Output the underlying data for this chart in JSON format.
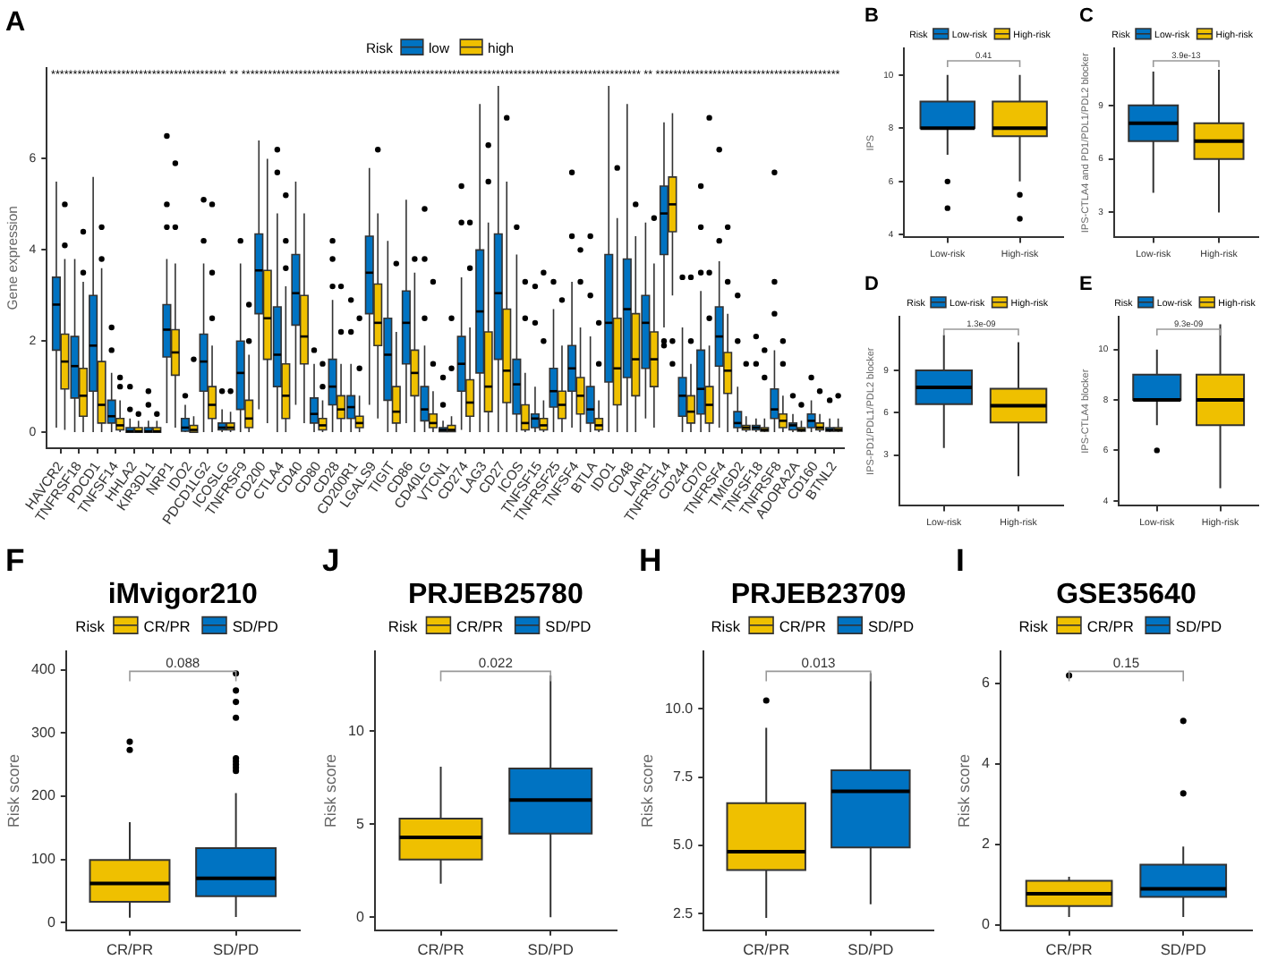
{
  "chart_data": [
    {
      "type": "box",
      "ylabel": "Gene expression",
      "legend": "top",
      "legend_title": "Risk",
      "ylim": [
        -0.35,
        8.0
      ],
      "yticks": [
        0,
        2,
        4,
        6
      ],
      "categories": [
        "HAVCR2",
        "TNFRSF18",
        "PDCD1",
        "TNFSF14",
        "HHLA2",
        "KIR3DL1",
        "NRP1",
        "IDO2",
        "PDCD1LG2",
        "ICOSLG",
        "TNFRSF9",
        "CD200",
        "CTLA4",
        "CD40",
        "CD80",
        "CD28",
        "CD200R1",
        "LGALS9",
        "TIGIT",
        "CD86",
        "CD40LG",
        "VTCN1",
        "CD274",
        "LAG3",
        "CD27",
        "ICOS",
        "TNFSF15",
        "TNFRSF25",
        "TNFSF4",
        "BTLA",
        "IDO1",
        "CD48",
        "LAIR1",
        "TNFRSF14",
        "CD244",
        "CD70",
        "TNFRSF4",
        "TMIGD2",
        "TNFSF18",
        "TNFRSF8",
        "ADORA2A",
        "CD160",
        "BTNL2"
      ],
      "series": [
        {
          "name": "low",
          "color": "#0073c2",
          "boxes": [
            {
              "low": 0.1,
              "q1": 1.8,
              "median": 2.8,
              "q3": 3.4,
              "high": 5.5
            },
            {
              "low": 0,
              "q1": 0.75,
              "median": 1.45,
              "q3": 2.1,
              "high": 3.8
            },
            {
              "low": 0,
              "q1": 0.9,
              "median": 1.9,
              "q3": 3.0,
              "high": 5.6
            },
            {
              "low": 0,
              "q1": 0.2,
              "median": 0.35,
              "q3": 0.7,
              "high": 1.3,
              "outliers": [
                1.8,
                2.3
              ]
            },
            {
              "low": 0,
              "q1": 0,
              "median": 0.02,
              "q3": 0.1,
              "high": 0.3,
              "outliers": [
                0.5,
                1.0
              ]
            },
            {
              "low": 0,
              "q1": 0,
              "median": 0.02,
              "q3": 0.1,
              "high": 0.25,
              "outliers": [
                0.6,
                0.9
              ]
            },
            {
              "low": 0.2,
              "q1": 1.65,
              "median": 2.25,
              "q3": 2.8,
              "high": 3.8,
              "outliers": [
                4.5,
                5.0,
                6.5
              ]
            },
            {
              "low": 0,
              "q1": 0.02,
              "median": 0.1,
              "q3": 0.3,
              "high": 0.6,
              "outliers": [
                0.8
              ]
            },
            {
              "low": 0,
              "q1": 0.9,
              "median": 1.55,
              "q3": 2.15,
              "high": 3.7,
              "outliers": [
                4.2,
                5.1
              ]
            },
            {
              "low": 0,
              "q1": 0.05,
              "median": 0.1,
              "q3": 0.2,
              "high": 0.5,
              "outliers": [
                0.9
              ]
            },
            {
              "low": 0,
              "q1": 0.5,
              "median": 1.3,
              "q3": 2.0,
              "high": 3.7,
              "outliers": [
                4.2
              ]
            },
            {
              "low": 0.5,
              "q1": 2.6,
              "median": 3.55,
              "q3": 4.35,
              "high": 6.4
            },
            {
              "low": 0,
              "q1": 1.0,
              "median": 1.7,
              "q3": 2.75,
              "high": 4.8,
              "outliers": [
                5.7,
                6.2
              ]
            },
            {
              "low": 0.6,
              "q1": 2.35,
              "median": 3.05,
              "q3": 3.9,
              "high": 5.5
            },
            {
              "low": 0,
              "q1": 0.2,
              "median": 0.4,
              "q3": 0.75,
              "high": 1.5,
              "outliers": [
                1.8
              ]
            },
            {
              "low": 0,
              "q1": 0.6,
              "median": 1.0,
              "q3": 1.6,
              "high": 2.9,
              "outliers": [
                3.2,
                3.8,
                4.2
              ]
            },
            {
              "low": 0,
              "q1": 0.3,
              "median": 0.55,
              "q3": 0.8,
              "high": 1.5,
              "outliers": [
                2.2,
                2.9
              ]
            },
            {
              "low": 0.6,
              "q1": 2.6,
              "median": 3.5,
              "q3": 4.3,
              "high": 5.8
            },
            {
              "low": 0,
              "q1": 0.7,
              "median": 1.7,
              "q3": 2.5,
              "high": 4.2
            },
            {
              "low": 0.2,
              "q1": 1.5,
              "median": 2.4,
              "q3": 3.1,
              "high": 5.1
            },
            {
              "low": 0,
              "q1": 0.25,
              "median": 0.5,
              "q3": 1.0,
              "high": 1.9,
              "outliers": [
                2.5,
                3.8,
                4.9
              ]
            },
            {
              "low": 0,
              "q1": 0.01,
              "median": 0.05,
              "q3": 0.1,
              "high": 0.25,
              "outliers": [
                0.6,
                1.2
              ]
            },
            {
              "low": 0.05,
              "q1": 0.9,
              "median": 1.5,
              "q3": 2.1,
              "high": 3.4,
              "outliers": [
                4.6,
                5.4
              ]
            },
            {
              "low": 0,
              "q1": 1.3,
              "median": 2.65,
              "q3": 4.0,
              "high": 7.2
            },
            {
              "low": 0,
              "q1": 1.6,
              "median": 3.05,
              "q3": 4.35,
              "high": 7.6
            },
            {
              "low": 0,
              "q1": 0.4,
              "median": 1.05,
              "q3": 1.6,
              "high": 3.9,
              "outliers": [
                4.5
              ]
            },
            {
              "low": 0,
              "q1": 0.1,
              "median": 0.3,
              "q3": 0.4,
              "high": 1.0,
              "outliers": [
                2.4,
                3.2
              ]
            },
            {
              "low": 0,
              "q1": 0.55,
              "median": 0.9,
              "q3": 1.4,
              "high": 2.7,
              "outliers": [
                3.3
              ]
            },
            {
              "low": 0.1,
              "q1": 0.9,
              "median": 1.4,
              "q3": 1.9,
              "high": 3.3,
              "outliers": [
                4.3,
                5.7
              ]
            },
            {
              "low": 0,
              "q1": 0.2,
              "median": 0.5,
              "q3": 1.0,
              "high": 2.1,
              "outliers": [
                3.0,
                4.3
              ]
            },
            {
              "low": 0,
              "q1": 1.1,
              "median": 2.4,
              "q3": 3.9,
              "high": 7.6
            },
            {
              "low": 0,
              "q1": 1.2,
              "median": 2.7,
              "q3": 3.8,
              "high": 7.2
            },
            {
              "low": 0.3,
              "q1": 1.4,
              "median": 2.4,
              "q3": 3.0,
              "high": 4.6
            },
            {
              "low": 2.3,
              "q1": 3.9,
              "median": 4.8,
              "q3": 5.4,
              "high": 6.8,
              "outliers": [
                1.9,
                2.0
              ]
            },
            {
              "low": 0,
              "q1": 0.35,
              "median": 0.8,
              "q3": 1.2,
              "high": 2.3,
              "outliers": [
                3.4
              ]
            },
            {
              "low": 0,
              "q1": 0.4,
              "median": 0.95,
              "q3": 1.8,
              "high": 3.1,
              "outliers": [
                3.5,
                4.5,
                5.4
              ]
            },
            {
              "low": 0.1,
              "q1": 1.45,
              "median": 2.1,
              "q3": 2.75,
              "high": 3.75,
              "outliers": [
                4.2,
                6.2
              ]
            },
            {
              "low": 0,
              "q1": 0.1,
              "median": 0.2,
              "q3": 0.45,
              "high": 1.0,
              "outliers": [
                2.0,
                3.0
              ]
            },
            {
              "low": 0,
              "q1": 0.05,
              "median": 0.1,
              "q3": 0.15,
              "high": 0.3,
              "outliers": [
                1.5,
                2.1
              ]
            },
            {
              "low": 0,
              "q1": 0.3,
              "median": 0.5,
              "q3": 0.95,
              "high": 1.8,
              "outliers": [
                2.6,
                3.3,
                5.7
              ]
            },
            {
              "low": 0,
              "q1": 0.05,
              "median": 0.15,
              "q3": 0.2,
              "high": 0.4,
              "outliers": [
                0.8
              ]
            },
            {
              "low": 0,
              "q1": 0.1,
              "median": 0.25,
              "q3": 0.4,
              "high": 0.7,
              "outliers": [
                1.2
              ]
            },
            {
              "low": 0,
              "q1": 0.02,
              "median": 0.05,
              "q3": 0.1,
              "high": 0.3,
              "outliers": [
                0.7
              ]
            }
          ]
        },
        {
          "name": "high",
          "color": "#efc000",
          "boxes": [
            {
              "low": 0.05,
              "q1": 0.95,
              "median": 1.55,
              "q3": 2.15,
              "high": 3.8,
              "outliers": [
                4.1,
                5.0
              ]
            },
            {
              "low": 0,
              "q1": 0.35,
              "median": 0.8,
              "q3": 1.4,
              "high": 3.3,
              "outliers": [
                3.5,
                4.4
              ]
            },
            {
              "low": 0,
              "q1": 0.2,
              "median": 0.6,
              "q3": 1.55,
              "high": 3.6,
              "outliers": [
                3.8,
                4.5
              ]
            },
            {
              "low": 0,
              "q1": 0.05,
              "median": 0.15,
              "q3": 0.3,
              "high": 0.7,
              "outliers": [
                1.0,
                1.2
              ]
            },
            {
              "low": 0,
              "q1": 0,
              "median": 0.02,
              "q3": 0.1,
              "high": 0.25,
              "outliers": [
                0.4
              ]
            },
            {
              "low": 0,
              "q1": 0,
              "median": 0.02,
              "q3": 0.1,
              "high": 0.25,
              "outliers": [
                0.4
              ]
            },
            {
              "low": 0.1,
              "q1": 1.25,
              "median": 1.75,
              "q3": 2.25,
              "high": 3.7,
              "outliers": [
                4.5,
                5.9
              ]
            },
            {
              "low": 0,
              "q1": 0,
              "median": 0.05,
              "q3": 0.15,
              "high": 0.35,
              "outliers": [
                1.6
              ]
            },
            {
              "low": 0,
              "q1": 0.3,
              "median": 0.6,
              "q3": 1.0,
              "high": 1.9,
              "outliers": [
                2.5,
                3.5,
                5.0
              ]
            },
            {
              "low": 0,
              "q1": 0.05,
              "median": 0.1,
              "q3": 0.2,
              "high": 0.45,
              "outliers": [
                0.9
              ]
            },
            {
              "low": 0,
              "q1": 0.1,
              "median": 0.3,
              "q3": 0.7,
              "high": 1.7,
              "outliers": [
                2.0,
                2.8
              ]
            },
            {
              "low": 0.2,
              "q1": 1.6,
              "median": 2.5,
              "q3": 3.55,
              "high": 6.0
            },
            {
              "low": 0,
              "q1": 0.3,
              "median": 0.8,
              "q3": 1.5,
              "high": 3.2,
              "outliers": [
                3.6,
                4.2,
                5.2
              ]
            },
            {
              "low": 0.2,
              "q1": 1.5,
              "median": 2.1,
              "q3": 3.0,
              "high": 4.8
            },
            {
              "low": 0,
              "q1": 0.05,
              "median": 0.15,
              "q3": 0.3,
              "high": 0.7,
              "outliers": [
                1.0,
                1.5
              ]
            },
            {
              "low": 0,
              "q1": 0.3,
              "median": 0.5,
              "q3": 0.8,
              "high": 1.5,
              "outliers": [
                2.2,
                3.2
              ]
            },
            {
              "low": 0,
              "q1": 0.1,
              "median": 0.2,
              "q3": 0.35,
              "high": 0.8,
              "outliers": [
                1.4,
                2.5
              ]
            },
            {
              "low": 0.3,
              "q1": 1.9,
              "median": 2.4,
              "q3": 3.25,
              "high": 4.8,
              "outliers": [
                6.2
              ]
            },
            {
              "low": 0,
              "q1": 0.2,
              "median": 0.45,
              "q3": 1.0,
              "high": 2.2,
              "outliers": [
                3.7
              ]
            },
            {
              "low": 0,
              "q1": 0.8,
              "median": 1.3,
              "q3": 1.8,
              "high": 3.5,
              "outliers": [
                3.8
              ]
            },
            {
              "low": 0,
              "q1": 0.1,
              "median": 0.2,
              "q3": 0.4,
              "high": 0.9,
              "outliers": [
                1.5,
                3.3
              ]
            },
            {
              "low": 0,
              "q1": 0.01,
              "median": 0.05,
              "q3": 0.15,
              "high": 0.35,
              "outliers": [
                1.4,
                2.5
              ]
            },
            {
              "low": 0,
              "q1": 0.35,
              "median": 0.65,
              "q3": 1.15,
              "high": 2.3,
              "outliers": [
                3.6,
                4.6
              ]
            },
            {
              "low": 0,
              "q1": 0.45,
              "median": 1.0,
              "q3": 2.2,
              "high": 4.6,
              "outliers": [
                5.5,
                6.3
              ]
            },
            {
              "low": 0,
              "q1": 0.65,
              "median": 1.35,
              "q3": 2.7,
              "high": 5.5,
              "outliers": [
                6.9
              ]
            },
            {
              "low": 0,
              "q1": 0.05,
              "median": 0.2,
              "q3": 0.6,
              "high": 1.3,
              "outliers": [
                2.5,
                3.3
              ]
            },
            {
              "low": 0,
              "q1": 0.05,
              "median": 0.15,
              "q3": 0.3,
              "high": 0.7,
              "outliers": [
                2.0,
                3.5
              ]
            },
            {
              "low": 0,
              "q1": 0.3,
              "median": 0.6,
              "q3": 0.9,
              "high": 1.9,
              "outliers": [
                2.9
              ]
            },
            {
              "low": 0,
              "q1": 0.4,
              "median": 0.8,
              "q3": 1.2,
              "high": 2.3,
              "outliers": [
                3.3,
                4.0
              ]
            },
            {
              "low": 0,
              "q1": 0.05,
              "median": 0.15,
              "q3": 0.3,
              "high": 0.7,
              "outliers": [
                1.5,
                2.4
              ]
            },
            {
              "low": 0,
              "q1": 0.6,
              "median": 1.4,
              "q3": 2.5,
              "high": 4.7,
              "outliers": [
                5.8
              ]
            },
            {
              "low": 0,
              "q1": 0.8,
              "median": 1.6,
              "q3": 2.6,
              "high": 4.3,
              "outliers": [
                5.0
              ]
            },
            {
              "low": 0.1,
              "q1": 1.0,
              "median": 1.6,
              "q3": 2.2,
              "high": 3.7,
              "outliers": [
                4.7
              ]
            },
            {
              "low": 3.0,
              "q1": 4.4,
              "median": 5.0,
              "q3": 5.6,
              "high": 7.0,
              "outliers": [
                1.5,
                2.0
              ]
            },
            {
              "low": 0,
              "q1": 0.2,
              "median": 0.45,
              "q3": 0.8,
              "high": 1.5,
              "outliers": [
                2.0,
                3.4
              ]
            },
            {
              "low": 0,
              "q1": 0.2,
              "median": 0.6,
              "q3": 1.0,
              "high": 1.9,
              "outliers": [
                2.5,
                3.5,
                6.9
              ]
            },
            {
              "low": 0,
              "q1": 0.85,
              "median": 1.35,
              "q3": 1.75,
              "high": 2.6,
              "outliers": [
                3.3,
                4.5
              ]
            },
            {
              "low": 0,
              "q1": 0.05,
              "median": 0.1,
              "q3": 0.15,
              "high": 0.35,
              "outliers": [
                1.5
              ]
            },
            {
              "low": 0,
              "q1": 0.02,
              "median": 0.05,
              "q3": 0.1,
              "high": 0.3,
              "outliers": [
                1.2,
                1.8
              ]
            },
            {
              "low": 0,
              "q1": 0.1,
              "median": 0.25,
              "q3": 0.4,
              "high": 0.8,
              "outliers": [
                1.5,
                2.0
              ]
            },
            {
              "low": 0,
              "q1": 0.02,
              "median": 0.05,
              "q3": 0.1,
              "high": 0.25,
              "outliers": [
                0.6
              ]
            },
            {
              "low": 0,
              "q1": 0.05,
              "median": 0.1,
              "q3": 0.2,
              "high": 0.4,
              "outliers": [
                0.9
              ]
            },
            {
              "low": 0,
              "q1": 0.02,
              "median": 0.05,
              "q3": 0.1,
              "high": 0.3,
              "outliers": [
                0.8
              ]
            }
          ]
        }
      ],
      "annotations": [
        "A",
        "**************************************** ** ******************************************************************************************* ** ******************************************"
      ]
    },
    {
      "type": "box",
      "ylabel": "IPS",
      "legend": "top",
      "legend_title": "Risk",
      "ylim": [
        3.9,
        11.0
      ],
      "yticks": [
        4,
        6,
        8,
        10
      ],
      "categories": [
        "Low-risk",
        "High-risk"
      ],
      "series": [
        {
          "name": "Low-risk",
          "color": "#0073c2",
          "boxes": [
            {
              "low": 7,
              "q1": 8,
              "median": 8,
              "q3": 9,
              "high": 10,
              "outliers": [
                6,
                5
              ]
            },
            null
          ]
        },
        {
          "name": "High-risk",
          "color": "#efc000",
          "boxes": [
            null,
            {
              "low": 6,
              "q1": 7.7,
              "median": 8,
              "q3": 9,
              "high": 10,
              "outliers": [
                5.5,
                4.6
              ]
            }
          ]
        }
      ],
      "annotations": [
        "B",
        "0.41"
      ]
    },
    {
      "type": "box",
      "ylabel": "IPS-CTLA4 and PD1/PDL1/PDL2 blocker",
      "legend": "top",
      "legend_title": "Risk",
      "ylim": [
        1.6,
        12.2
      ],
      "yticks": [
        3,
        6,
        9
      ],
      "categories": [
        "Low-risk",
        "High-risk"
      ],
      "series": [
        {
          "name": "Low-risk",
          "color": "#0073c2",
          "boxes": [
            {
              "low": 4.1,
              "q1": 7,
              "median": 8,
              "q3": 9,
              "high": 10.9
            },
            null
          ]
        },
        {
          "name": "High-risk",
          "color": "#efc000",
          "boxes": [
            null,
            {
              "low": 3,
              "q1": 6,
              "median": 7,
              "q3": 8,
              "high": 11
            }
          ]
        }
      ],
      "annotations": [
        "C",
        "3.9e-13"
      ]
    },
    {
      "type": "box",
      "ylabel": "IPS-PD1/PDL1/PDL2 blocker",
      "legend": "top",
      "legend_title": "Risk",
      "ylim": [
        -0.6,
        12.8
      ],
      "yticks": [
        3,
        6,
        9
      ],
      "categories": [
        "Low-risk",
        "High-risk"
      ],
      "series": [
        {
          "name": "Low-risk",
          "color": "#0073c2",
          "boxes": [
            {
              "low": 3.5,
              "q1": 6.6,
              "median": 7.8,
              "q3": 9,
              "high": 11.5
            },
            null
          ]
        },
        {
          "name": "High-risk",
          "color": "#efc000",
          "boxes": [
            null,
            {
              "low": 1.5,
              "q1": 5.3,
              "median": 6.5,
              "q3": 7.7,
              "high": 11
            }
          ]
        }
      ],
      "annotations": [
        "D",
        "1.3e-09"
      ]
    },
    {
      "type": "box",
      "ylabel": "IPS-CTLA4 blocker",
      "legend": "top",
      "legend_title": "Risk",
      "ylim": [
        3.8,
        11.3
      ],
      "yticks": [
        4,
        6,
        8,
        10
      ],
      "categories": [
        "Low-risk",
        "High-risk"
      ],
      "series": [
        {
          "name": "Low-risk",
          "color": "#0073c2",
          "boxes": [
            {
              "low": 7,
              "q1": 8,
              "median": 8,
              "q3": 9,
              "high": 10,
              "outliers": [
                6
              ]
            },
            null
          ]
        },
        {
          "name": "High-risk",
          "color": "#efc000",
          "boxes": [
            null,
            {
              "low": 4.5,
              "q1": 7,
              "median": 8,
              "q3": 9,
              "high": 11
            }
          ]
        }
      ],
      "annotations": [
        "E",
        "9.3e-09"
      ]
    },
    {
      "type": "box",
      "title": "iMvigor210",
      "ylabel": "Risk score",
      "legend": "top",
      "legend_title": "Risk",
      "ylim": [
        -12,
        429
      ],
      "yticks": [
        0,
        100,
        200,
        300,
        400
      ],
      "categories": [
        "CR/PR",
        "SD/PD"
      ],
      "series": [
        {
          "name": "CR/PR",
          "color": "#efc000",
          "boxes": [
            {
              "low": 8,
              "q1": 33,
              "median": 62,
              "q3": 99,
              "high": 159,
              "outliers": [
                273,
                286
              ]
            },
            null
          ]
        },
        {
          "name": "SD/PD",
          "color": "#0073c2",
          "boxes": [
            null,
            {
              "low": 9,
              "q1": 42,
              "median": 70,
              "q3": 118,
              "high": 205,
              "outliers": [
                240,
                245,
                250,
                255,
                260,
                324,
                349,
                367,
                394
              ]
            }
          ]
        }
      ],
      "annotations": [
        "F",
        "0.088"
      ]
    },
    {
      "type": "box",
      "title": "PRJEB25780",
      "ylabel": "Risk score",
      "legend": "top",
      "legend_title": "Risk",
      "ylim": [
        -0.7,
        14.3
      ],
      "yticks": [
        0,
        5,
        10
      ],
      "categories": [
        "CR/PR",
        "SD/PD"
      ],
      "series": [
        {
          "name": "CR/PR",
          "color": "#efc000",
          "boxes": [
            {
              "low": 1.8,
              "q1": 3.1,
              "median": 4.3,
              "q3": 5.3,
              "high": 8.1
            },
            null
          ]
        },
        {
          "name": "SD/PD",
          "color": "#0073c2",
          "boxes": [
            null,
            {
              "low": 0,
              "q1": 4.5,
              "median": 6.3,
              "q3": 8.0,
              "high": 13.0
            }
          ]
        }
      ],
      "annotations": [
        "J",
        "0.022"
      ]
    },
    {
      "type": "box",
      "title": "PRJEB23709",
      "ylabel": "Risk score",
      "legend": "top",
      "legend_title": "Risk",
      "ylim": [
        1.9,
        12.1
      ],
      "yticks": [
        2.5,
        {
          "value": 5,
          "label": "5.0"
        },
        7.5,
        {
          "value": 10,
          "label": "10.0"
        }
      ],
      "categories": [
        "CR/PR",
        "SD/PD"
      ],
      "series": [
        {
          "name": "CR/PR",
          "color": "#efc000",
          "boxes": [
            {
              "low": 2.35,
              "q1": 4.1,
              "median": 4.77,
              "q3": 6.55,
              "high": 9.3,
              "outliers": [
                10.3
              ]
            },
            null
          ]
        },
        {
          "name": "SD/PD",
          "color": "#0073c2",
          "boxes": [
            null,
            {
              "low": 2.85,
              "q1": 4.93,
              "median": 6.98,
              "q3": 7.75,
              "high": 11.3
            }
          ]
        }
      ],
      "annotations": [
        "H",
        "0.013"
      ]
    },
    {
      "type": "box",
      "title": "GSE35640",
      "ylabel": "Risk score",
      "legend": "top",
      "legend_title": "Risk",
      "ylim": [
        -0.13,
        6.8
      ],
      "yticks": [
        0,
        2,
        4,
        6
      ],
      "categories": [
        "CR/PR",
        "SD/PD"
      ],
      "series": [
        {
          "name": "CR/PR",
          "color": "#efc000",
          "boxes": [
            {
              "low": 0.2,
              "q1": 0.47,
              "median": 0.78,
              "q3": 1.1,
              "high": 1.2,
              "outliers": [
                6.2
              ]
            },
            null
          ]
        },
        {
          "name": "SD/PD",
          "color": "#0073c2",
          "boxes": [
            null,
            {
              "low": 0.2,
              "q1": 0.7,
              "median": 0.9,
              "q3": 1.5,
              "high": 1.95,
              "outliers": [
                3.27,
                5.07
              ]
            }
          ]
        }
      ],
      "annotations": [
        "I",
        "0.15"
      ]
    }
  ]
}
